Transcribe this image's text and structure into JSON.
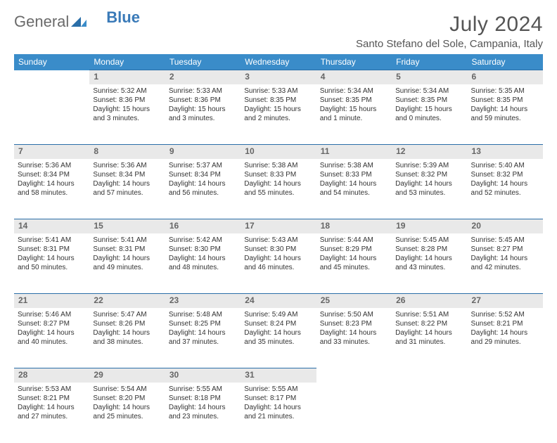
{
  "logo": {
    "text1": "General",
    "text2": "Blue"
  },
  "title": "July 2024",
  "location": "Santo Stefano del Sole, Campania, Italy",
  "colors": {
    "header_bg": "#3a8cc9",
    "header_text": "#ffffff",
    "daynum_bg": "#e9e9e9",
    "daynum_text": "#666666",
    "cell_text": "#333333",
    "rule": "#2a6ea8",
    "logo_blue": "#3a7ab8",
    "logo_gray": "#6a6a6a",
    "background": "#ffffff"
  },
  "weekdays": [
    "Sunday",
    "Monday",
    "Tuesday",
    "Wednesday",
    "Thursday",
    "Friday",
    "Saturday"
  ],
  "weeks": [
    [
      null,
      {
        "n": "1",
        "sr": "Sunrise: 5:32 AM",
        "ss": "Sunset: 8:36 PM",
        "d1": "Daylight: 15 hours",
        "d2": "and 3 minutes."
      },
      {
        "n": "2",
        "sr": "Sunrise: 5:33 AM",
        "ss": "Sunset: 8:36 PM",
        "d1": "Daylight: 15 hours",
        "d2": "and 3 minutes."
      },
      {
        "n": "3",
        "sr": "Sunrise: 5:33 AM",
        "ss": "Sunset: 8:35 PM",
        "d1": "Daylight: 15 hours",
        "d2": "and 2 minutes."
      },
      {
        "n": "4",
        "sr": "Sunrise: 5:34 AM",
        "ss": "Sunset: 8:35 PM",
        "d1": "Daylight: 15 hours",
        "d2": "and 1 minute."
      },
      {
        "n": "5",
        "sr": "Sunrise: 5:34 AM",
        "ss": "Sunset: 8:35 PM",
        "d1": "Daylight: 15 hours",
        "d2": "and 0 minutes."
      },
      {
        "n": "6",
        "sr": "Sunrise: 5:35 AM",
        "ss": "Sunset: 8:35 PM",
        "d1": "Daylight: 14 hours",
        "d2": "and 59 minutes."
      }
    ],
    [
      {
        "n": "7",
        "sr": "Sunrise: 5:36 AM",
        "ss": "Sunset: 8:34 PM",
        "d1": "Daylight: 14 hours",
        "d2": "and 58 minutes."
      },
      {
        "n": "8",
        "sr": "Sunrise: 5:36 AM",
        "ss": "Sunset: 8:34 PM",
        "d1": "Daylight: 14 hours",
        "d2": "and 57 minutes."
      },
      {
        "n": "9",
        "sr": "Sunrise: 5:37 AM",
        "ss": "Sunset: 8:34 PM",
        "d1": "Daylight: 14 hours",
        "d2": "and 56 minutes."
      },
      {
        "n": "10",
        "sr": "Sunrise: 5:38 AM",
        "ss": "Sunset: 8:33 PM",
        "d1": "Daylight: 14 hours",
        "d2": "and 55 minutes."
      },
      {
        "n": "11",
        "sr": "Sunrise: 5:38 AM",
        "ss": "Sunset: 8:33 PM",
        "d1": "Daylight: 14 hours",
        "d2": "and 54 minutes."
      },
      {
        "n": "12",
        "sr": "Sunrise: 5:39 AM",
        "ss": "Sunset: 8:32 PM",
        "d1": "Daylight: 14 hours",
        "d2": "and 53 minutes."
      },
      {
        "n": "13",
        "sr": "Sunrise: 5:40 AM",
        "ss": "Sunset: 8:32 PM",
        "d1": "Daylight: 14 hours",
        "d2": "and 52 minutes."
      }
    ],
    [
      {
        "n": "14",
        "sr": "Sunrise: 5:41 AM",
        "ss": "Sunset: 8:31 PM",
        "d1": "Daylight: 14 hours",
        "d2": "and 50 minutes."
      },
      {
        "n": "15",
        "sr": "Sunrise: 5:41 AM",
        "ss": "Sunset: 8:31 PM",
        "d1": "Daylight: 14 hours",
        "d2": "and 49 minutes."
      },
      {
        "n": "16",
        "sr": "Sunrise: 5:42 AM",
        "ss": "Sunset: 8:30 PM",
        "d1": "Daylight: 14 hours",
        "d2": "and 48 minutes."
      },
      {
        "n": "17",
        "sr": "Sunrise: 5:43 AM",
        "ss": "Sunset: 8:30 PM",
        "d1": "Daylight: 14 hours",
        "d2": "and 46 minutes."
      },
      {
        "n": "18",
        "sr": "Sunrise: 5:44 AM",
        "ss": "Sunset: 8:29 PM",
        "d1": "Daylight: 14 hours",
        "d2": "and 45 minutes."
      },
      {
        "n": "19",
        "sr": "Sunrise: 5:45 AM",
        "ss": "Sunset: 8:28 PM",
        "d1": "Daylight: 14 hours",
        "d2": "and 43 minutes."
      },
      {
        "n": "20",
        "sr": "Sunrise: 5:45 AM",
        "ss": "Sunset: 8:27 PM",
        "d1": "Daylight: 14 hours",
        "d2": "and 42 minutes."
      }
    ],
    [
      {
        "n": "21",
        "sr": "Sunrise: 5:46 AM",
        "ss": "Sunset: 8:27 PM",
        "d1": "Daylight: 14 hours",
        "d2": "and 40 minutes."
      },
      {
        "n": "22",
        "sr": "Sunrise: 5:47 AM",
        "ss": "Sunset: 8:26 PM",
        "d1": "Daylight: 14 hours",
        "d2": "and 38 minutes."
      },
      {
        "n": "23",
        "sr": "Sunrise: 5:48 AM",
        "ss": "Sunset: 8:25 PM",
        "d1": "Daylight: 14 hours",
        "d2": "and 37 minutes."
      },
      {
        "n": "24",
        "sr": "Sunrise: 5:49 AM",
        "ss": "Sunset: 8:24 PM",
        "d1": "Daylight: 14 hours",
        "d2": "and 35 minutes."
      },
      {
        "n": "25",
        "sr": "Sunrise: 5:50 AM",
        "ss": "Sunset: 8:23 PM",
        "d1": "Daylight: 14 hours",
        "d2": "and 33 minutes."
      },
      {
        "n": "26",
        "sr": "Sunrise: 5:51 AM",
        "ss": "Sunset: 8:22 PM",
        "d1": "Daylight: 14 hours",
        "d2": "and 31 minutes."
      },
      {
        "n": "27",
        "sr": "Sunrise: 5:52 AM",
        "ss": "Sunset: 8:21 PM",
        "d1": "Daylight: 14 hours",
        "d2": "and 29 minutes."
      }
    ],
    [
      {
        "n": "28",
        "sr": "Sunrise: 5:53 AM",
        "ss": "Sunset: 8:21 PM",
        "d1": "Daylight: 14 hours",
        "d2": "and 27 minutes."
      },
      {
        "n": "29",
        "sr": "Sunrise: 5:54 AM",
        "ss": "Sunset: 8:20 PM",
        "d1": "Daylight: 14 hours",
        "d2": "and 25 minutes."
      },
      {
        "n": "30",
        "sr": "Sunrise: 5:55 AM",
        "ss": "Sunset: 8:18 PM",
        "d1": "Daylight: 14 hours",
        "d2": "and 23 minutes."
      },
      {
        "n": "31",
        "sr": "Sunrise: 5:55 AM",
        "ss": "Sunset: 8:17 PM",
        "d1": "Daylight: 14 hours",
        "d2": "and 21 minutes."
      },
      null,
      null,
      null
    ]
  ]
}
